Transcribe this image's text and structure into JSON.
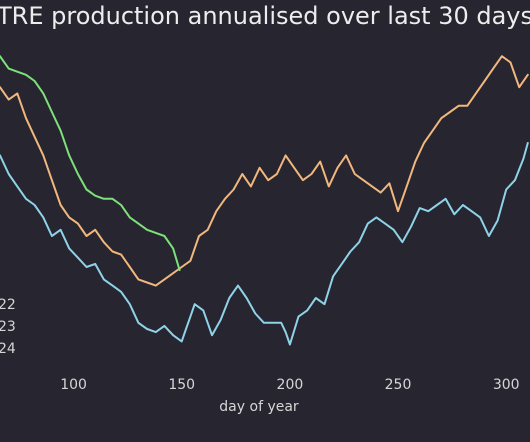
{
  "chart_data": {
    "type": "line",
    "title": "TRE production annualised over last 30 days",
    "xlabel": "day of year",
    "ylabel": "",
    "xlim": [
      66,
      311
    ],
    "ylim": [
      0,
      100
    ],
    "x_ticks": [
      100,
      150,
      200,
      250,
      300
    ],
    "grid": false,
    "legend_placement": "left",
    "series": [
      {
        "name": "22",
        "color": "#8fd3e8",
        "x": [
          66,
          70,
          74,
          78,
          82,
          86,
          90,
          94,
          98,
          102,
          106,
          110,
          114,
          118,
          122,
          126,
          130,
          134,
          138,
          142,
          146,
          148,
          150,
          152,
          154,
          156,
          160,
          164,
          168,
          172,
          176,
          180,
          184,
          188,
          192,
          196,
          198,
          200,
          204,
          208,
          212,
          216,
          220,
          224,
          228,
          232,
          236,
          240,
          244,
          248,
          252,
          256,
          260,
          264,
          268,
          272,
          276,
          280,
          284,
          288,
          292,
          296,
          300,
          304,
          308,
          310
        ],
        "y": [
          66,
          60,
          56,
          52,
          50,
          46,
          40,
          42,
          36,
          33,
          30,
          31,
          26,
          24,
          22,
          18,
          12,
          10,
          9,
          11,
          8,
          7,
          6,
          10,
          14,
          18,
          16,
          8,
          13,
          20,
          24,
          20,
          15,
          12,
          12,
          12,
          9,
          5,
          14,
          16,
          20,
          18,
          27,
          31,
          35,
          38,
          44,
          46,
          44,
          42,
          38,
          43,
          49,
          48,
          50,
          52,
          47,
          50,
          48,
          46,
          40,
          45,
          55,
          58,
          65,
          70
        ]
      },
      {
        "name": "23",
        "color": "#f2b77c",
        "x": [
          66,
          70,
          74,
          78,
          82,
          86,
          90,
          94,
          98,
          102,
          106,
          110,
          114,
          118,
          122,
          126,
          130,
          134,
          138,
          142,
          146,
          150,
          154,
          158,
          162,
          166,
          170,
          174,
          178,
          182,
          186,
          190,
          194,
          198,
          202,
          206,
          210,
          214,
          218,
          222,
          226,
          230,
          234,
          238,
          242,
          246,
          250,
          254,
          258,
          262,
          266,
          270,
          274,
          278,
          282,
          286,
          290,
          294,
          298,
          302,
          306,
          310
        ],
        "y": [
          88,
          84,
          86,
          78,
          72,
          66,
          58,
          50,
          46,
          44,
          40,
          42,
          38,
          35,
          34,
          30,
          26,
          25,
          24,
          26,
          28,
          30,
          32,
          40,
          42,
          48,
          52,
          55,
          60,
          56,
          62,
          58,
          60,
          66,
          62,
          58,
          60,
          64,
          56,
          62,
          66,
          60,
          58,
          56,
          54,
          57,
          48,
          56,
          64,
          70,
          74,
          78,
          80,
          82,
          82,
          86,
          90,
          94,
          98,
          96,
          88,
          92
        ]
      },
      {
        "name": "24",
        "color": "#7ee07a",
        "x": [
          66,
          70,
          74,
          78,
          82,
          86,
          90,
          94,
          98,
          102,
          106,
          110,
          114,
          118,
          122,
          126,
          130,
          134,
          138,
          142,
          146,
          149
        ],
        "y": [
          98,
          94,
          93,
          92,
          90,
          86,
          80,
          74,
          66,
          60,
          55,
          53,
          52,
          52,
          50,
          46,
          44,
          42,
          41,
          40,
          36,
          29
        ]
      }
    ]
  }
}
